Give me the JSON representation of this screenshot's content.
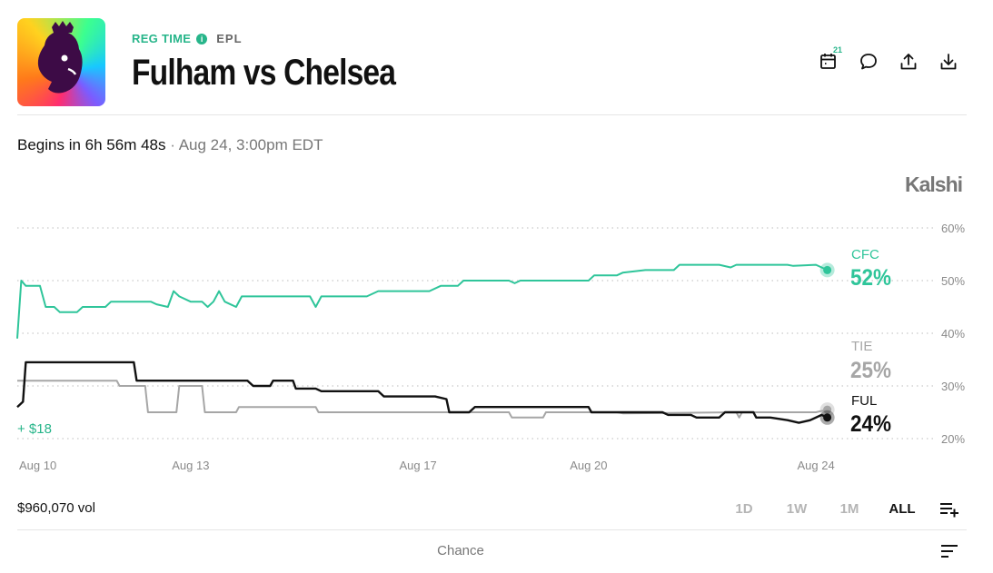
{
  "header": {
    "reg_label": "REG TIME",
    "info_glyph": "i",
    "league": "EPL",
    "title": "Fulham vs Chelsea",
    "logo_icon": "premier-league-lion-icon",
    "calendar_badge": "21",
    "action_icons": [
      "calendar-icon",
      "comment-icon",
      "share-icon",
      "download-icon"
    ]
  },
  "status": {
    "begins": "Begins in 6h 56m 48s",
    "separator": "·",
    "date": "Aug 24, 3:00pm EDT"
  },
  "brand": "Kalshi",
  "footer": {
    "volume": "$960,070 vol",
    "ranges": [
      "1D",
      "1W",
      "1M",
      "ALL"
    ],
    "active_range": "ALL",
    "chance_label": "Chance"
  },
  "colors": {
    "cfc": "#2fc59a",
    "tie": "#a6a6a6",
    "ful": "#111111",
    "accent": "#27b58a"
  },
  "chart_data": {
    "type": "line",
    "x_ticks": [
      "Aug 10",
      "Aug 13",
      "Aug 17",
      "Aug 20",
      "Aug 24"
    ],
    "x_tick_days": [
      10,
      13,
      17,
      20,
      24
    ],
    "x_range_days": [
      9.95,
      24.35
    ],
    "ylim": [
      18,
      62
    ],
    "y_ticks": [
      20,
      30,
      40,
      50,
      60
    ],
    "y_tick_labels": [
      "20%",
      "30%",
      "40%",
      "50%",
      "60%"
    ],
    "grid": true,
    "annotation": "+ $18",
    "series": [
      {
        "name": "CFC",
        "label": "CFC",
        "value_label": "52%",
        "color_key": "cfc",
        "points": [
          [
            9.95,
            39
          ],
          [
            10.02,
            50
          ],
          [
            10.1,
            49
          ],
          [
            10.35,
            49
          ],
          [
            10.45,
            45
          ],
          [
            10.6,
            45
          ],
          [
            10.7,
            44
          ],
          [
            11.0,
            44
          ],
          [
            11.1,
            45
          ],
          [
            11.5,
            45
          ],
          [
            11.6,
            46
          ],
          [
            12.3,
            46
          ],
          [
            12.4,
            45.5
          ],
          [
            12.6,
            45
          ],
          [
            12.7,
            48
          ],
          [
            12.8,
            47
          ],
          [
            13.0,
            46
          ],
          [
            13.2,
            46
          ],
          [
            13.3,
            45
          ],
          [
            13.4,
            46
          ],
          [
            13.5,
            48
          ],
          [
            13.6,
            46
          ],
          [
            13.8,
            45
          ],
          [
            13.9,
            47
          ],
          [
            14.3,
            47
          ],
          [
            14.5,
            47
          ],
          [
            15.1,
            47
          ],
          [
            15.2,
            45
          ],
          [
            15.3,
            47
          ],
          [
            16.1,
            47
          ],
          [
            16.3,
            48
          ],
          [
            17.2,
            48
          ],
          [
            17.4,
            49
          ],
          [
            17.7,
            49
          ],
          [
            17.8,
            50
          ],
          [
            18.3,
            50
          ],
          [
            18.6,
            50
          ],
          [
            18.7,
            49.5
          ],
          [
            18.8,
            50
          ],
          [
            20.0,
            50
          ],
          [
            20.1,
            51
          ],
          [
            20.5,
            51
          ],
          [
            20.6,
            51.5
          ],
          [
            21.0,
            52
          ],
          [
            21.5,
            52
          ],
          [
            21.6,
            53
          ],
          [
            22.3,
            53
          ],
          [
            22.5,
            52.5
          ],
          [
            22.6,
            53
          ],
          [
            23.5,
            53
          ],
          [
            23.6,
            52.8
          ],
          [
            24.0,
            53
          ],
          [
            24.2,
            52
          ]
        ]
      },
      {
        "name": "TIE",
        "label": "TIE",
        "value_label": "25%",
        "color_key": "tie",
        "points": [
          [
            9.95,
            31
          ],
          [
            10.1,
            31
          ],
          [
            11.7,
            31
          ],
          [
            11.75,
            30
          ],
          [
            12.2,
            30
          ],
          [
            12.25,
            25
          ],
          [
            12.75,
            25
          ],
          [
            12.8,
            30
          ],
          [
            13.2,
            30
          ],
          [
            13.25,
            25
          ],
          [
            13.8,
            25
          ],
          [
            13.85,
            26
          ],
          [
            15.2,
            26
          ],
          [
            15.25,
            25
          ],
          [
            17.5,
            25
          ],
          [
            17.55,
            25
          ],
          [
            18.6,
            25
          ],
          [
            18.65,
            24
          ],
          [
            19.2,
            24
          ],
          [
            19.25,
            25
          ],
          [
            20.5,
            25
          ],
          [
            20.6,
            24.8
          ],
          [
            22.6,
            25
          ],
          [
            22.65,
            24
          ],
          [
            22.7,
            25
          ],
          [
            24.0,
            25
          ],
          [
            24.2,
            25.5
          ]
        ]
      },
      {
        "name": "FUL",
        "label": "FUL",
        "value_label": "24%",
        "color_key": "ful",
        "points": [
          [
            9.95,
            26
          ],
          [
            10.05,
            27
          ],
          [
            10.1,
            34.5
          ],
          [
            11.0,
            34.5
          ],
          [
            12.0,
            34.5
          ],
          [
            12.05,
            31
          ],
          [
            13.2,
            31
          ],
          [
            14.0,
            31
          ],
          [
            14.1,
            30
          ],
          [
            14.4,
            30
          ],
          [
            14.45,
            31
          ],
          [
            14.8,
            31
          ],
          [
            14.85,
            29.5
          ],
          [
            15.2,
            29.5
          ],
          [
            15.3,
            29
          ],
          [
            16.3,
            29
          ],
          [
            16.4,
            28
          ],
          [
            17.3,
            28
          ],
          [
            17.5,
            27.5
          ],
          [
            17.55,
            25
          ],
          [
            17.9,
            25
          ],
          [
            18.0,
            26
          ],
          [
            20.0,
            26
          ],
          [
            20.05,
            25
          ],
          [
            21.1,
            25
          ],
          [
            21.3,
            25
          ],
          [
            21.4,
            24.5
          ],
          [
            21.8,
            24.5
          ],
          [
            21.9,
            24
          ],
          [
            22.3,
            24
          ],
          [
            22.4,
            25
          ],
          [
            22.9,
            25
          ],
          [
            22.95,
            24
          ],
          [
            23.2,
            24
          ],
          [
            23.5,
            23.5
          ],
          [
            23.7,
            23
          ],
          [
            23.9,
            23.5
          ],
          [
            24.1,
            24.5
          ],
          [
            24.2,
            24
          ]
        ]
      }
    ]
  }
}
